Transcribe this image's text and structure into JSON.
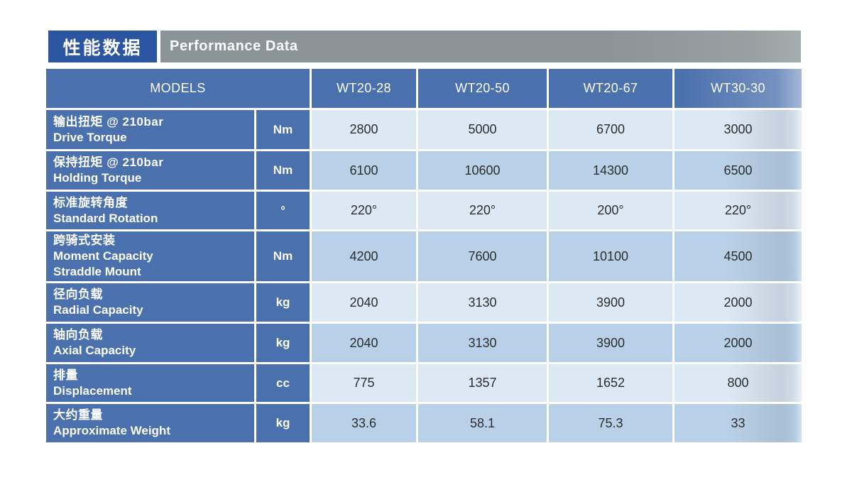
{
  "header": {
    "title_zh": "性能数据",
    "title_en": "Performance Data",
    "box_color": "#2b55a1",
    "bar_color": "#8b9598"
  },
  "table": {
    "models_label": "MODELS",
    "columns": [
      "WT20-28",
      "WT20-50",
      "WT20-67",
      "WT30-30"
    ],
    "colors": {
      "header_blue": "#4a70ad",
      "row_light": "#dce8f3",
      "row_dark": "#b9d1e8",
      "value_text": "#2d2d2d"
    },
    "rows": [
      {
        "label_zh": "输出扭矩 @ 210bar",
        "label_en": "Drive Torque",
        "unit": "Nm",
        "values": [
          "2800",
          "5000",
          "6700",
          "3000"
        ]
      },
      {
        "label_zh": "保持扭矩 @ 210bar",
        "label_en": "Holding Torque",
        "unit": "Nm",
        "values": [
          "6100",
          "10600",
          "14300",
          "6500"
        ]
      },
      {
        "label_zh": "标准旋转角度",
        "label_en": "Standard Rotation",
        "unit": "°",
        "values": [
          "220°",
          "220°",
          "200°",
          "220°"
        ]
      },
      {
        "label_zh": "跨骑式安装",
        "label_en": "Moment Capacity",
        "label_en2": "Straddle Mount",
        "unit": "Nm",
        "values": [
          "4200",
          "7600",
          "10100",
          "4500"
        ]
      },
      {
        "label_zh": "径向负载",
        "label_en": "Radial Capacity",
        "unit": "kg",
        "values": [
          "2040",
          "3130",
          "3900",
          "2000"
        ]
      },
      {
        "label_zh": "轴向负载",
        "label_en": "Axial Capacity",
        "unit": "kg",
        "values": [
          "2040",
          "3130",
          "3900",
          "2000"
        ]
      },
      {
        "label_zh": "排量",
        "label_en": "Displacement",
        "unit": "cc",
        "values": [
          "775",
          "1357",
          "1652",
          "800"
        ]
      },
      {
        "label_zh": "大约重量",
        "label_en": "Approximate Weight",
        "unit": "kg",
        "values": [
          "33.6",
          "58.1",
          "75.3",
          "33"
        ]
      }
    ]
  }
}
